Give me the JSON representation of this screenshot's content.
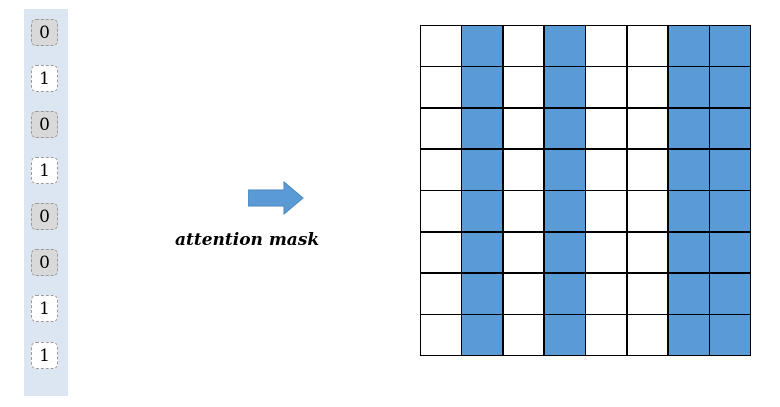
{
  "input_mask": {
    "values": [
      "0",
      "1",
      "0",
      "1",
      "0",
      "0",
      "1",
      "1"
    ]
  },
  "arrow": {
    "icon": "right-arrow-icon",
    "color": "#5b9bd5"
  },
  "label": "attention mask",
  "attention_matrix": {
    "rows": 8,
    "cols": 8,
    "column_mask": [
      0,
      1,
      0,
      1,
      0,
      0,
      1,
      1
    ],
    "on_color": "#5b9bd5",
    "off_color": "#ffffff"
  }
}
